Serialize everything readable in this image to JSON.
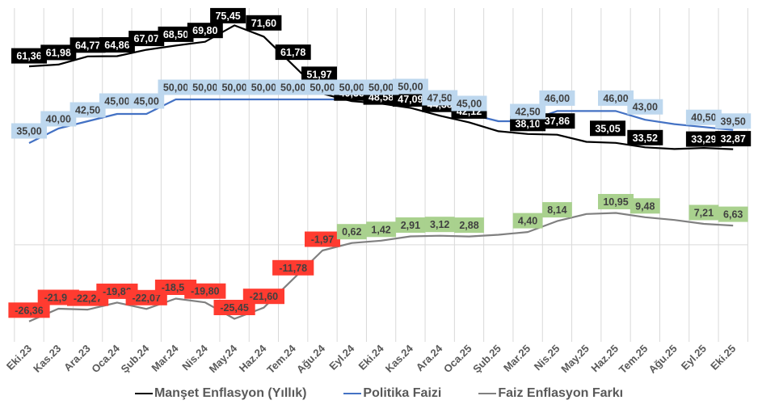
{
  "chart_data": {
    "type": "line",
    "title": "",
    "xlabel": "",
    "ylabel": "",
    "grid": {
      "vertical": true,
      "horizontal_zero_line": true
    },
    "ylim": [
      -31.7,
      81.4
    ],
    "legend_position": "bottom",
    "categories": [
      "Eki.23",
      "Kas.23",
      "Ara.23",
      "Oca.24",
      "Şub.24",
      "Mar.24",
      "Nis.24",
      "May.24",
      "Haz.24",
      "Tem.24",
      "Ağu.24",
      "Eyl.24",
      "Eki.24",
      "Kas.24",
      "Ara.24",
      "Oca.25",
      "Şub.25",
      "Mar.25",
      "Nis.25",
      "May.25",
      "Haz.25",
      "Tem.25",
      "Ağu.25",
      "Eyl.25",
      "Eki.25"
    ],
    "series": [
      {
        "name": "Manşet Enflasyon (Yıllık)",
        "color": "#000000",
        "label_bg": "#000000",
        "label_color": "#ffffff",
        "values": [
          61.36,
          61.98,
          64.77,
          64.86,
          67.07,
          68.5,
          69.8,
          75.45,
          71.6,
          61.78,
          51.97,
          49.38,
          48.58,
          47.09,
          44.38,
          42.12,
          39.05,
          38.1,
          37.86,
          35.41,
          35.05,
          33.52,
          32.95,
          33.29,
          32.87
        ],
        "labels": [
          "61,36",
          "61,98",
          "64,77",
          "64,86",
          "67,07",
          "68,50",
          "69,80",
          "75,45",
          "71,60",
          "61,78",
          "51,97",
          "49,38",
          "48,58",
          "47,09",
          "44,38",
          "42,12",
          null,
          "38,10",
          "37,86",
          null,
          "35,05",
          "33,52",
          null,
          "33,29",
          "32,87"
        ]
      },
      {
        "name": "Politika Faizi",
        "color": "#4472C4",
        "label_bg": "#BDD7EE",
        "label_color": "#404040",
        "values": [
          35.0,
          40.0,
          42.5,
          45.0,
          45.0,
          50.0,
          50.0,
          50.0,
          50.0,
          50.0,
          50.0,
          50.0,
          50.0,
          50.0,
          47.5,
          45.0,
          42.5,
          42.5,
          46.0,
          46.0,
          46.0,
          43.0,
          41.5,
          40.5,
          39.5
        ],
        "labels": [
          "35,00",
          "40,00",
          "42,50",
          "45,00",
          "45,00",
          "50,00",
          "50,00",
          "50,00",
          "50,00",
          "50,00",
          "50,00",
          "50,00",
          "50,00",
          "50,00",
          "47,50",
          "45,00",
          null,
          "42,50",
          "46,00",
          null,
          "46,00",
          "43,00",
          null,
          "40,50",
          "39,50"
        ]
      },
      {
        "name": "Faiz Enflasyon Farkı",
        "color": "#808080",
        "label_bg_negative": "#FF3B30",
        "label_bg_positive": "#A9D18E",
        "label_color": "#404040",
        "values": [
          -26.36,
          -21.98,
          -22.27,
          -19.86,
          -22.07,
          -18.5,
          -19.8,
          -25.45,
          -21.6,
          -11.78,
          -1.97,
          0.62,
          1.42,
          2.91,
          3.12,
          2.88,
          3.45,
          4.4,
          8.14,
          10.59,
          10.95,
          9.48,
          8.55,
          7.21,
          6.63
        ],
        "labels": [
          "-26,36",
          "-21,98",
          "-22,27",
          "-19,86",
          "-22,07",
          "-18,50",
          "-19,80",
          "-25,45",
          "-21,60",
          "-11,78",
          "-1,97",
          "0,62",
          "1,42",
          "2,91",
          "3,12",
          "2,88",
          null,
          "4,40",
          "8,14",
          null,
          "10,95",
          "9,48",
          null,
          "7,21",
          "6,63"
        ]
      }
    ]
  },
  "legend": {
    "items": [
      {
        "label": "Manşet Enflasyon (Yıllık)",
        "color": "#000000"
      },
      {
        "label": "Politika Faizi",
        "color": "#4472C4"
      },
      {
        "label": "Faiz Enflasyon Farkı",
        "color": "#808080"
      }
    ]
  }
}
